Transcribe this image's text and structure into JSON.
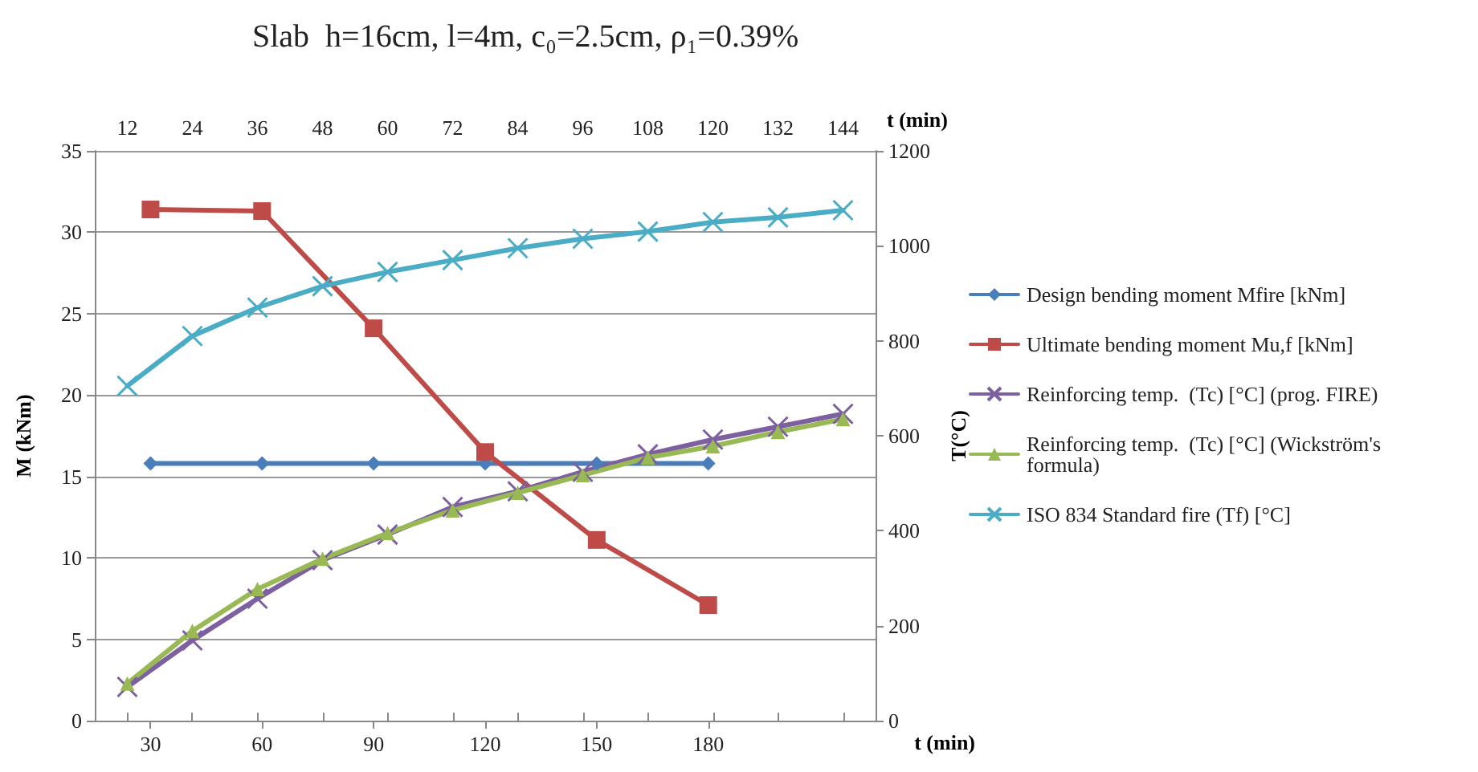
{
  "chart_data": {
    "type": "line",
    "title": "Slab  h=16cm, l=4m, c₀=2.5cm, ρ₁=0.39%",
    "xlabel": "t (min)",
    "x2label": "t (min)",
    "ylabel": "M (kNm)",
    "y2label": "T(°C)",
    "x": [
      12,
      24,
      36,
      48,
      60,
      72,
      84,
      96,
      108,
      120,
      132,
      144
    ],
    "xlim": [
      6,
      150
    ],
    "xticks": [
      12,
      24,
      36,
      48,
      60,
      72,
      84,
      96,
      108,
      120,
      132,
      144
    ],
    "x2lim": [
      15,
      225
    ],
    "x2ticks": [
      30,
      60,
      90,
      120,
      150,
      180
    ],
    "ylim": [
      0,
      35
    ],
    "yticks": [
      0,
      5,
      10,
      15,
      20,
      25,
      30,
      35
    ],
    "y2lim": [
      0,
      1200
    ],
    "y2ticks": [
      0,
      200,
      400,
      600,
      800,
      1000,
      1200
    ],
    "grid": "y",
    "legend": "right",
    "line_style": "solid",
    "series": [
      {
        "name": "Design bending moment Mfire [kNm]",
        "color": "#4a7ebb",
        "marker": "diamond",
        "axis": "x2",
        "x": [
          30,
          60,
          90,
          120,
          150,
          180
        ],
        "values": [
          15.8,
          15.8,
          15.8,
          15.8,
          15.8,
          15.8
        ]
      },
      {
        "name": "Ultimate bending moment Mu,f [kNm]",
        "color": "#be4b48",
        "marker": "square",
        "axis": "x2",
        "x": [
          30,
          60,
          90,
          120,
          150,
          180
        ],
        "values": [
          31.4,
          31.3,
          24.1,
          16.5,
          11.1,
          7.1
        ]
      },
      {
        "name": "Reinforcing temp.  (Tc) [°C] (prog. FIRE)",
        "color": "#7d60a0",
        "marker": "cross",
        "axis": "y2",
        "values": [
          71,
          169,
          257,
          338,
          392,
          450,
          483,
          524,
          561,
          592,
          619,
          646
        ]
      },
      {
        "name": "Reinforcing temp.  (Tc) [°C] (Wickström's formula)",
        "color": "#98b954",
        "marker": "triangle",
        "axis": "y2",
        "values": [
          78,
          189,
          277,
          341,
          395,
          443,
          480,
          517,
          554,
          578,
          608,
          635
        ]
      },
      {
        "name": "ISO 834 Standard fire (Tf) [°C]",
        "color": "#4bacc6",
        "marker": "cross",
        "axis": "y2",
        "values": [
          705,
          810,
          870,
          915,
          945,
          970,
          995,
          1015,
          1030,
          1050,
          1060,
          1075
        ]
      }
    ]
  }
}
